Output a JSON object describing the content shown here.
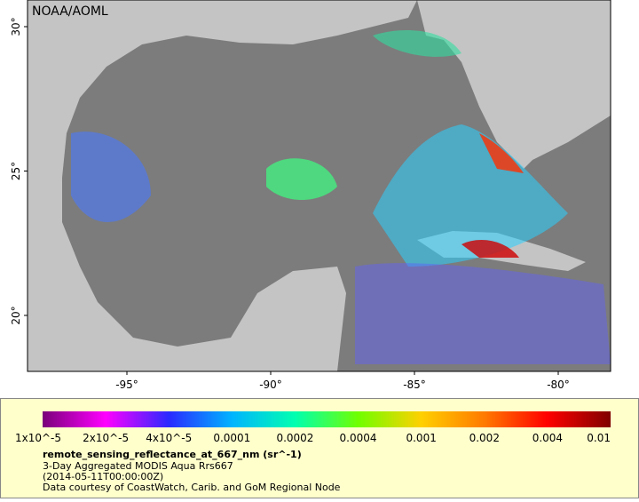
{
  "map": {
    "watermark": "NOAA/AOML",
    "lat_ticks": [
      {
        "value": 30,
        "label": "30°"
      },
      {
        "value": 25,
        "label": "25°"
      },
      {
        "value": 20,
        "label": "20°"
      }
    ],
    "lon_ticks": [
      {
        "value": -95,
        "label": "-95°"
      },
      {
        "value": -90,
        "label": "-90°"
      },
      {
        "value": -85,
        "label": "-85°"
      },
      {
        "value": -80,
        "label": "-80°"
      }
    ],
    "colorbar": {
      "labels": [
        "1x10^-5",
        "2x10^-5",
        "4x10^-5",
        "0.0001",
        "0.0002",
        "0.0004",
        "0.001",
        "0.002",
        "0.004",
        "0.01"
      ],
      "colors": [
        "#7a007a",
        "#ff00ff",
        "#2a2aff",
        "#00b4ff",
        "#00ffb0",
        "#70ff00",
        "#ffd000",
        "#ff7a00",
        "#ff0000",
        "#800000"
      ]
    },
    "legend": {
      "variable": "remote_sensing_reflectance_at_667_nm (sr^-1)",
      "lines": [
        "3-Day Aggregated MODIS Aqua Rrs667",
        "(2014-05-11T00:00:00Z)",
        "Data courtesy of CoastWatch, Carib. and GoM Regional Node"
      ]
    }
  }
}
